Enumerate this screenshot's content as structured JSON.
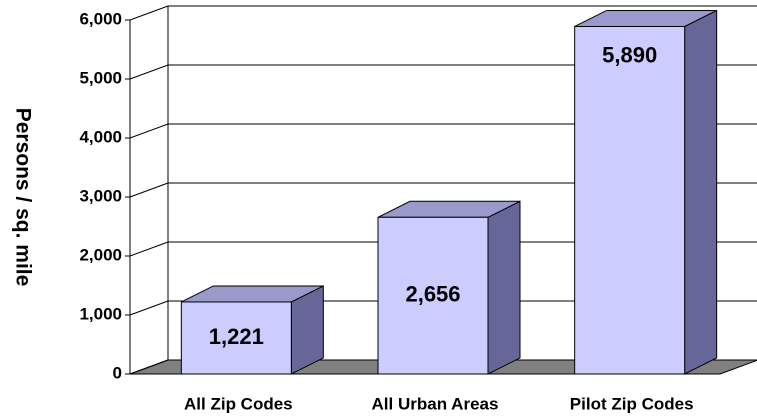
{
  "chart_data": {
    "type": "bar3d",
    "y_label": "Persons / sq. mile",
    "categories": [
      "All Zip Codes",
      "All Urban Areas",
      "Pilot Zip Codes"
    ],
    "values": [
      1221,
      2656,
      5890
    ],
    "value_labels": [
      "1,221",
      "2,656",
      "5,890"
    ],
    "color": "#ccccff",
    "ylim": [
      0,
      6000
    ],
    "yticks": [
      0,
      {
        "value": 1000,
        "label": "1,000"
      },
      {
        "value": 2000,
        "label": "2,000"
      },
      {
        "value": 3000,
        "label": "3,000"
      },
      {
        "value": 4000,
        "label": "4,000"
      },
      {
        "value": 5000,
        "label": "5,000"
      },
      {
        "value": 6000,
        "label": "6,000"
      }
    ],
    "grid": true
  }
}
